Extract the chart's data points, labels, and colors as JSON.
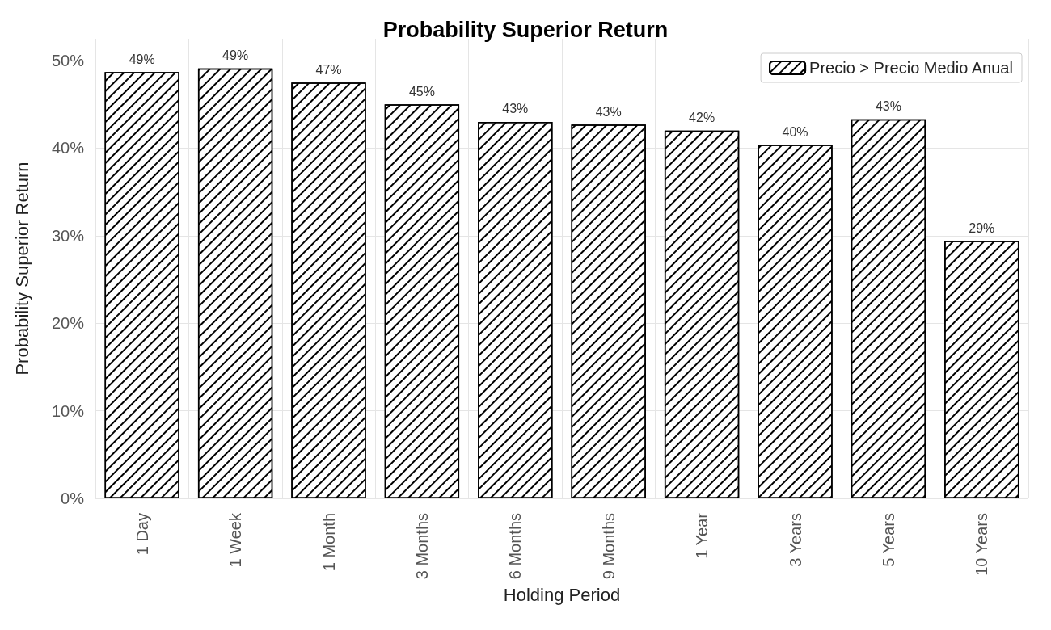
{
  "chart_data": {
    "type": "bar",
    "title": "Probability Superior Return",
    "xlabel": "Holding Period",
    "ylabel": "Probability Superior Return",
    "categories": [
      "1 Day",
      "1 Week",
      "1 Month",
      "3 Months",
      "6 Months",
      "9 Months",
      "1 Year",
      "3 Years",
      "5 Years",
      "10 Years"
    ],
    "series": [
      {
        "name": "Precio > Precio Medio Anual",
        "color": "#ffffff",
        "values": [
          48.7,
          49.1,
          47.5,
          45.0,
          43.0,
          42.7,
          42.0,
          40.4,
          43.3,
          29.4
        ],
        "value_labels": [
          "49%",
          "49%",
          "47%",
          "45%",
          "43%",
          "43%",
          "42%",
          "40%",
          "43%",
          "29%"
        ]
      }
    ],
    "ylim": [
      0,
      52.5
    ],
    "yticks": [
      {
        "value": 0,
        "label": "0%"
      },
      {
        "value": 10,
        "label": "10%"
      },
      {
        "value": 20,
        "label": "20%"
      },
      {
        "value": 30,
        "label": "30%"
      },
      {
        "value": 40,
        "label": "40%"
      },
      {
        "value": 50,
        "label": "50%"
      }
    ],
    "grid": true,
    "legend": "top right"
  }
}
